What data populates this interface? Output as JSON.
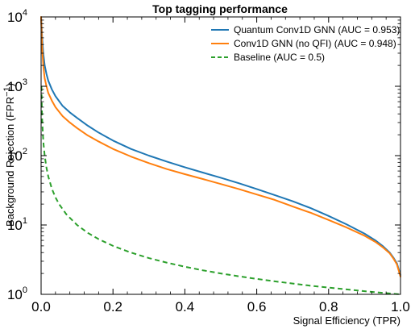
{
  "chart_data": {
    "type": "line",
    "title": "Top tagging performance",
    "xlabel": "Signal Efficiency (TPR)",
    "ylabel": "Background Rejection (FPR",
    "ylabel_sup": "−1",
    "ylabel_close": ")",
    "xlim": [
      0.0,
      1.0
    ],
    "ylim": [
      1,
      10000
    ],
    "yscale": "log",
    "x_ticks": [
      {
        "value": 0.0,
        "label": "0.0"
      },
      {
        "value": 0.2,
        "label": "0.2"
      },
      {
        "value": 0.4,
        "label": "0.4"
      },
      {
        "value": 0.6,
        "label": "0.6"
      },
      {
        "value": 0.8,
        "label": "0.8"
      },
      {
        "value": 1.0,
        "label": "1.0"
      }
    ],
    "y_ticks": [
      {
        "value": 1,
        "base": "10",
        "exp": "0"
      },
      {
        "value": 10,
        "base": "10",
        "exp": "1"
      },
      {
        "value": 100,
        "base": "10",
        "exp": "2"
      },
      {
        "value": 1000,
        "base": "10",
        "exp": "3"
      },
      {
        "value": 10000,
        "base": "10",
        "exp": "4"
      }
    ],
    "legend_position": "top-right",
    "grid": false,
    "series": [
      {
        "name": "Quantum Conv1D GNN (AUC = 0.953)",
        "color": "#1f77b4",
        "style": "solid",
        "x": [
          0.0,
          0.003,
          0.006,
          0.01,
          0.015,
          0.02,
          0.03,
          0.04,
          0.06,
          0.08,
          0.1,
          0.13,
          0.16,
          0.2,
          0.25,
          0.3,
          0.35,
          0.4,
          0.45,
          0.5,
          0.55,
          0.6,
          0.65,
          0.7,
          0.75,
          0.8,
          0.85,
          0.9,
          0.93,
          0.95,
          0.97,
          0.98,
          0.99,
          1.0
        ],
        "y": [
          10000,
          5000,
          3000,
          2000,
          1500,
          1200,
          900,
          720,
          520,
          420,
          350,
          270,
          215,
          165,
          125,
          100,
          82,
          68,
          57,
          48,
          40,
          33,
          27,
          22,
          17.5,
          13.5,
          10.2,
          7.5,
          6.0,
          5.0,
          4.0,
          3.4,
          2.8,
          1.9
        ]
      },
      {
        "name": "Conv1D GNN (no QFI) (AUC = 0.948)",
        "color": "#ff7f0e",
        "style": "solid",
        "x": [
          0.0,
          0.003,
          0.006,
          0.01,
          0.015,
          0.02,
          0.03,
          0.04,
          0.06,
          0.08,
          0.1,
          0.13,
          0.16,
          0.2,
          0.25,
          0.3,
          0.35,
          0.4,
          0.45,
          0.5,
          0.55,
          0.6,
          0.65,
          0.7,
          0.75,
          0.8,
          0.85,
          0.9,
          0.93,
          0.95,
          0.97,
          0.98,
          0.99,
          1.0
        ],
        "y": [
          10000,
          3500,
          2000,
          1300,
          1000,
          800,
          620,
          500,
          370,
          300,
          250,
          195,
          160,
          125,
          97,
          78,
          64,
          54,
          46,
          39,
          33,
          27.5,
          23,
          18.5,
          15,
          11.8,
          9.2,
          7.0,
          5.7,
          4.8,
          3.9,
          3.3,
          2.7,
          1.8
        ]
      },
      {
        "name": "Baseline (AUC = 0.5)",
        "color": "#2ca02c",
        "style": "dashed",
        "x": [
          0.001,
          0.002,
          0.003,
          0.005,
          0.007,
          0.01,
          0.015,
          0.02,
          0.03,
          0.04,
          0.05,
          0.07,
          0.1,
          0.13,
          0.16,
          0.2,
          0.25,
          0.3,
          0.35,
          0.4,
          0.45,
          0.5,
          0.55,
          0.6,
          0.65,
          0.7,
          0.75,
          0.8,
          0.85,
          0.9,
          0.95,
          0.98,
          1.0
        ],
        "y": [
          1000,
          500,
          333.3,
          200,
          142.9,
          100,
          66.7,
          50,
          33.3,
          25,
          20,
          14.3,
          10,
          7.69,
          6.25,
          5,
          4,
          3.33,
          2.86,
          2.5,
          2.22,
          2,
          1.82,
          1.67,
          1.54,
          1.43,
          1.33,
          1.25,
          1.18,
          1.11,
          1.05,
          1.02,
          1.0
        ]
      }
    ]
  }
}
